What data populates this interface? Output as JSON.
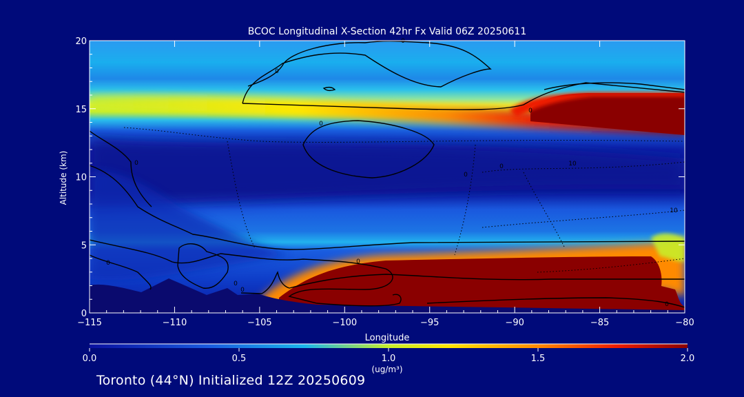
{
  "chart_data": {
    "type": "heatmap",
    "title": "BCOC Longitudinal X-Section 42hr  Fx Valid 06Z 20250611",
    "xlabel": "Longitude",
    "ylabel": "Altitude (km)",
    "xlim": [
      -115,
      -80
    ],
    "ylim": [
      0,
      20
    ],
    "x_ticks": [
      -115,
      -110,
      -105,
      -100,
      -95,
      -90,
      -85,
      -80
    ],
    "x_tick_labels": [
      "−115",
      "−110",
      "−105",
      "−100",
      "−95",
      "−90",
      "−85",
      "−80"
    ],
    "y_ticks": [
      0,
      5,
      10,
      15,
      20
    ],
    "y_tick_labels": [
      "0",
      "5",
      "10",
      "15",
      "20"
    ],
    "colorbar": {
      "min": 0.0,
      "max": 2.0,
      "ticks": [
        0.0,
        0.5,
        1.0,
        1.5,
        2.0
      ],
      "tick_labels": [
        "0.0",
        "0.5",
        "1.0",
        "1.5",
        "2.0"
      ],
      "unit": "(ug/m³)",
      "colors": [
        "#0a10a0",
        "#1a5be0",
        "#19b6ec",
        "#c8ee2a",
        "#ffe600",
        "#ff8a00",
        "#ee1c00",
        "#8a0000"
      ]
    },
    "contour_labels": [
      "0",
      "0",
      "0",
      "0",
      "0",
      "0",
      "0",
      "0",
      "0",
      "0",
      "0",
      "10",
      "10",
      "0"
    ],
    "features": [
      {
        "name": "upper layer",
        "altitude_km": 15.3,
        "value_west": 1.0,
        "value_east": 2.0
      },
      {
        "name": "lower plume",
        "altitude_km": 2.5,
        "lon_start": -104,
        "lon_end": -80,
        "value": 2.0
      },
      {
        "name": "mid-troposphere minimum",
        "altitude_km": 10.5,
        "value": 0.1
      }
    ]
  },
  "footer": {
    "text": "Toronto (44°N) Initialized 12Z 20250609"
  }
}
